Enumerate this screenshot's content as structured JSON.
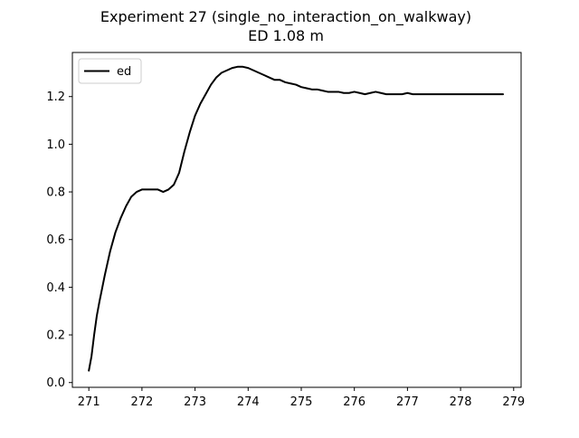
{
  "chart_data": {
    "type": "line",
    "title": "Experiment 27 (single_no_interaction_on_walkway)",
    "subtitle": "ED 1.08 m",
    "xlabel": "",
    "ylabel": "",
    "xlim": [
      270.69,
      279.14
    ],
    "ylim": [
      -0.02,
      1.385
    ],
    "xticks": [
      271,
      272,
      273,
      274,
      275,
      276,
      277,
      278,
      279
    ],
    "yticks": [
      0.0,
      0.2,
      0.4,
      0.6,
      0.8,
      1.0,
      1.2
    ],
    "xtick_labels": [
      "271",
      "272",
      "273",
      "274",
      "275",
      "276",
      "277",
      "278",
      "279"
    ],
    "ytick_labels": [
      "0.0",
      "0.2",
      "0.4",
      "0.6",
      "0.8",
      "1.0",
      "1.2"
    ],
    "grid": false,
    "legend_position": "upper-left",
    "series": [
      {
        "name": "ed",
        "color": "#000000",
        "x": [
          271.0,
          271.05,
          271.1,
          271.15,
          271.2,
          271.3,
          271.4,
          271.5,
          271.6,
          271.7,
          271.8,
          271.9,
          272.0,
          272.1,
          272.2,
          272.3,
          272.4,
          272.5,
          272.6,
          272.7,
          272.8,
          272.9,
          273.0,
          273.1,
          273.2,
          273.3,
          273.4,
          273.5,
          273.6,
          273.7,
          273.8,
          273.9,
          274.0,
          274.1,
          274.2,
          274.3,
          274.4,
          274.5,
          274.6,
          274.7,
          274.8,
          274.9,
          275.0,
          275.1,
          275.2,
          275.3,
          275.4,
          275.5,
          275.6,
          275.7,
          275.8,
          275.9,
          276.0,
          276.1,
          276.2,
          276.3,
          276.4,
          276.5,
          276.6,
          276.7,
          276.8,
          276.9,
          277.0,
          277.1,
          277.2,
          277.3,
          277.4,
          277.5,
          277.6,
          277.7,
          277.8,
          277.9,
          278.0,
          278.1,
          278.2,
          278.3,
          278.4,
          278.5,
          278.6,
          278.7,
          278.8
        ],
        "y": [
          0.05,
          0.11,
          0.2,
          0.28,
          0.34,
          0.45,
          0.55,
          0.63,
          0.69,
          0.74,
          0.78,
          0.8,
          0.81,
          0.81,
          0.81,
          0.81,
          0.8,
          0.81,
          0.83,
          0.88,
          0.97,
          1.05,
          1.12,
          1.17,
          1.21,
          1.25,
          1.28,
          1.3,
          1.31,
          1.32,
          1.325,
          1.325,
          1.32,
          1.31,
          1.3,
          1.29,
          1.28,
          1.27,
          1.27,
          1.26,
          1.255,
          1.25,
          1.24,
          1.235,
          1.23,
          1.23,
          1.225,
          1.22,
          1.22,
          1.22,
          1.215,
          1.215,
          1.22,
          1.215,
          1.21,
          1.215,
          1.22,
          1.215,
          1.21,
          1.21,
          1.21,
          1.21,
          1.215,
          1.21,
          1.21,
          1.21,
          1.21,
          1.21,
          1.21,
          1.21,
          1.21,
          1.21,
          1.21,
          1.21,
          1.21,
          1.21,
          1.21,
          1.21,
          1.21,
          1.21,
          1.21
        ]
      }
    ]
  }
}
